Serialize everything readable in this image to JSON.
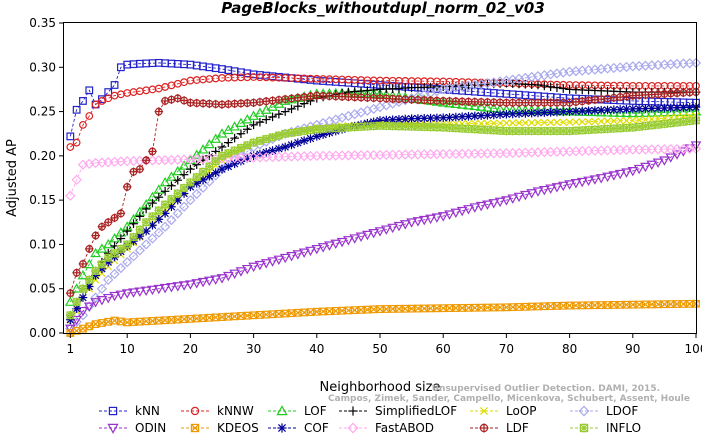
{
  "chart_data": {
    "type": "line",
    "title": "PageBlocks_withoutdupl_norm_02_v03",
    "xlabel": "Neighborhood size",
    "ylabel": "Adjusted AP",
    "xlim": [
      0,
      100
    ],
    "ylim": [
      0,
      0.35
    ],
    "xticks": [
      1,
      10,
      20,
      30,
      40,
      50,
      60,
      70,
      80,
      90,
      100
    ],
    "yticks": [
      0.0,
      0.05,
      0.1,
      0.15,
      0.2,
      0.25,
      0.3,
      0.35
    ],
    "ytick_labels": [
      "0.00",
      "0.05",
      "0.10",
      "0.15",
      "0.20",
      "0.25",
      "0.30",
      "0.35"
    ],
    "grid": false,
    "legend_position": "bottom",
    "watermark": [
      "Unsupervised Outlier Detection. DAMI, 2015.",
      "Campos, Zimek, Sander, Campello, Micenkova, Schubert, Assent, Houle"
    ],
    "series": [
      {
        "name": "kNN",
        "color": "#2222cc",
        "marker": "square",
        "points": [
          [
            1,
            0.222
          ],
          [
            2,
            0.252
          ],
          [
            3,
            0.262
          ],
          [
            4,
            0.274
          ],
          [
            5,
            0.258
          ],
          [
            6,
            0.264
          ],
          [
            7,
            0.272
          ],
          [
            8,
            0.28
          ],
          [
            9,
            0.3
          ],
          [
            10,
            0.303
          ],
          [
            12,
            0.304
          ],
          [
            15,
            0.305
          ],
          [
            20,
            0.303
          ],
          [
            25,
            0.298
          ],
          [
            30,
            0.292
          ],
          [
            40,
            0.285
          ],
          [
            50,
            0.28
          ],
          [
            60,
            0.275
          ],
          [
            70,
            0.27
          ],
          [
            80,
            0.265
          ],
          [
            90,
            0.262
          ],
          [
            100,
            0.26
          ]
        ]
      },
      {
        "name": "kNNW",
        "color": "#dd2222",
        "marker": "circle",
        "points": [
          [
            1,
            0.21
          ],
          [
            2,
            0.215
          ],
          [
            3,
            0.235
          ],
          [
            4,
            0.245
          ],
          [
            5,
            0.258
          ],
          [
            6,
            0.262
          ],
          [
            7,
            0.265
          ],
          [
            8,
            0.268
          ],
          [
            10,
            0.271
          ],
          [
            12,
            0.273
          ],
          [
            15,
            0.276
          ],
          [
            20,
            0.285
          ],
          [
            25,
            0.288
          ],
          [
            30,
            0.289
          ],
          [
            40,
            0.287
          ],
          [
            50,
            0.285
          ],
          [
            60,
            0.284
          ],
          [
            70,
            0.282
          ],
          [
            80,
            0.28
          ],
          [
            90,
            0.279
          ],
          [
            100,
            0.279
          ]
        ]
      },
      {
        "name": "LOF",
        "color": "#22cc22",
        "marker": "triangle-up",
        "points": [
          [
            1,
            0.035
          ],
          [
            3,
            0.065
          ],
          [
            5,
            0.09
          ],
          [
            7,
            0.1
          ],
          [
            10,
            0.12
          ],
          [
            13,
            0.145
          ],
          [
            16,
            0.17
          ],
          [
            20,
            0.195
          ],
          [
            25,
            0.225
          ],
          [
            30,
            0.245
          ],
          [
            35,
            0.262
          ],
          [
            40,
            0.27
          ],
          [
            45,
            0.271
          ],
          [
            50,
            0.27
          ],
          [
            55,
            0.265
          ],
          [
            60,
            0.26
          ],
          [
            70,
            0.252
          ],
          [
            80,
            0.25
          ],
          [
            90,
            0.248
          ],
          [
            100,
            0.25
          ]
        ]
      },
      {
        "name": "SimplifiedLOF",
        "color": "#000000",
        "marker": "plus",
        "points": [
          [
            1,
            0.02
          ],
          [
            3,
            0.05
          ],
          [
            5,
            0.07
          ],
          [
            7,
            0.09
          ],
          [
            10,
            0.115
          ],
          [
            13,
            0.14
          ],
          [
            16,
            0.16
          ],
          [
            20,
            0.185
          ],
          [
            25,
            0.21
          ],
          [
            30,
            0.235
          ],
          [
            35,
            0.25
          ],
          [
            40,
            0.265
          ],
          [
            45,
            0.272
          ],
          [
            50,
            0.275
          ],
          [
            55,
            0.277
          ],
          [
            60,
            0.278
          ],
          [
            65,
            0.28
          ],
          [
            70,
            0.282
          ],
          [
            75,
            0.28
          ],
          [
            80,
            0.275
          ],
          [
            90,
            0.272
          ],
          [
            100,
            0.272
          ]
        ]
      },
      {
        "name": "LoOP",
        "color": "#dddd00",
        "marker": "x",
        "points": [
          [
            1,
            0.01
          ],
          [
            3,
            0.04
          ],
          [
            5,
            0.06
          ],
          [
            7,
            0.075
          ],
          [
            10,
            0.095
          ],
          [
            13,
            0.115
          ],
          [
            16,
            0.14
          ],
          [
            20,
            0.165
          ],
          [
            25,
            0.195
          ],
          [
            30,
            0.215
          ],
          [
            35,
            0.225
          ],
          [
            40,
            0.232
          ],
          [
            45,
            0.234
          ],
          [
            50,
            0.236
          ],
          [
            55,
            0.236
          ],
          [
            60,
            0.236
          ],
          [
            70,
            0.237
          ],
          [
            80,
            0.238
          ],
          [
            90,
            0.24
          ],
          [
            100,
            0.245
          ]
        ]
      },
      {
        "name": "LDOF",
        "color": "#aaaaee",
        "marker": "diamond",
        "points": [
          [
            1,
            0.005
          ],
          [
            3,
            0.02
          ],
          [
            5,
            0.04
          ],
          [
            7,
            0.06
          ],
          [
            10,
            0.08
          ],
          [
            13,
            0.1
          ],
          [
            16,
            0.12
          ],
          [
            20,
            0.15
          ],
          [
            25,
            0.185
          ],
          [
            30,
            0.21
          ],
          [
            35,
            0.225
          ],
          [
            40,
            0.235
          ],
          [
            45,
            0.245
          ],
          [
            50,
            0.255
          ],
          [
            55,
            0.265
          ],
          [
            60,
            0.275
          ],
          [
            65,
            0.28
          ],
          [
            70,
            0.285
          ],
          [
            75,
            0.29
          ],
          [
            80,
            0.295
          ],
          [
            90,
            0.301
          ],
          [
            100,
            0.305
          ]
        ]
      },
      {
        "name": "ODIN",
        "color": "#9933cc",
        "marker": "triangle-down",
        "points": [
          [
            1,
            0.005
          ],
          [
            3,
            0.025
          ],
          [
            5,
            0.035
          ],
          [
            8,
            0.042
          ],
          [
            10,
            0.045
          ],
          [
            15,
            0.05
          ],
          [
            20,
            0.055
          ],
          [
            25,
            0.062
          ],
          [
            30,
            0.075
          ],
          [
            35,
            0.085
          ],
          [
            40,
            0.095
          ],
          [
            45,
            0.105
          ],
          [
            50,
            0.115
          ],
          [
            55,
            0.125
          ],
          [
            60,
            0.132
          ],
          [
            65,
            0.142
          ],
          [
            70,
            0.15
          ],
          [
            75,
            0.16
          ],
          [
            80,
            0.168
          ],
          [
            85,
            0.175
          ],
          [
            90,
            0.183
          ],
          [
            95,
            0.195
          ],
          [
            100,
            0.212
          ]
        ]
      },
      {
        "name": "KDEOS",
        "color": "#ee9900",
        "marker": "square-x",
        "points": [
          [
            1,
            0.0
          ],
          [
            3,
            0.005
          ],
          [
            5,
            0.01
          ],
          [
            8,
            0.014
          ],
          [
            10,
            0.012
          ],
          [
            15,
            0.014
          ],
          [
            20,
            0.016
          ],
          [
            30,
            0.02
          ],
          [
            40,
            0.024
          ],
          [
            50,
            0.027
          ],
          [
            60,
            0.028
          ],
          [
            70,
            0.029
          ],
          [
            80,
            0.031
          ],
          [
            90,
            0.032
          ],
          [
            100,
            0.033
          ]
        ]
      },
      {
        "name": "COF",
        "color": "#000099",
        "marker": "star",
        "points": [
          [
            1,
            0.015
          ],
          [
            3,
            0.04
          ],
          [
            5,
            0.065
          ],
          [
            7,
            0.08
          ],
          [
            10,
            0.098
          ],
          [
            13,
            0.115
          ],
          [
            16,
            0.135
          ],
          [
            20,
            0.165
          ],
          [
            25,
            0.185
          ],
          [
            30,
            0.2
          ],
          [
            35,
            0.21
          ],
          [
            40,
            0.222
          ],
          [
            45,
            0.232
          ],
          [
            50,
            0.24
          ],
          [
            55,
            0.242
          ],
          [
            60,
            0.243
          ],
          [
            70,
            0.247
          ],
          [
            80,
            0.25
          ],
          [
            90,
            0.253
          ],
          [
            100,
            0.255
          ]
        ]
      },
      {
        "name": "FastABOD",
        "color": "#ffaaee",
        "marker": "diamond",
        "points": [
          [
            1,
            0.155
          ],
          [
            2,
            0.173
          ],
          [
            3,
            0.19
          ],
          [
            5,
            0.192
          ],
          [
            10,
            0.194
          ],
          [
            20,
            0.196
          ],
          [
            30,
            0.198
          ],
          [
            40,
            0.2
          ],
          [
            50,
            0.201
          ],
          [
            60,
            0.202
          ],
          [
            70,
            0.203
          ],
          [
            80,
            0.205
          ],
          [
            90,
            0.207
          ],
          [
            100,
            0.208
          ]
        ]
      },
      {
        "name": "LDF",
        "color": "#aa2222",
        "marker": "circle-plus",
        "points": [
          [
            1,
            0.045
          ],
          [
            2,
            0.068
          ],
          [
            3,
            0.078
          ],
          [
            4,
            0.095
          ],
          [
            5,
            0.11
          ],
          [
            6,
            0.12
          ],
          [
            7,
            0.125
          ],
          [
            8,
            0.13
          ],
          [
            9,
            0.135
          ],
          [
            10,
            0.165
          ],
          [
            11,
            0.182
          ],
          [
            12,
            0.185
          ],
          [
            13,
            0.195
          ],
          [
            14,
            0.205
          ],
          [
            15,
            0.25
          ],
          [
            16,
            0.262
          ],
          [
            18,
            0.265
          ],
          [
            20,
            0.26
          ],
          [
            25,
            0.258
          ],
          [
            30,
            0.26
          ],
          [
            40,
            0.268
          ],
          [
            50,
            0.265
          ],
          [
            60,
            0.262
          ],
          [
            70,
            0.26
          ],
          [
            80,
            0.26
          ],
          [
            90,
            0.268
          ],
          [
            100,
            0.272
          ]
        ]
      },
      {
        "name": "INFLO",
        "color": "#99cc33",
        "marker": "square-star",
        "points": [
          [
            1,
            0.02
          ],
          [
            3,
            0.05
          ],
          [
            5,
            0.07
          ],
          [
            7,
            0.085
          ],
          [
            10,
            0.1
          ],
          [
            13,
            0.125
          ],
          [
            16,
            0.145
          ],
          [
            20,
            0.17
          ],
          [
            25,
            0.2
          ],
          [
            30,
            0.215
          ],
          [
            35,
            0.225
          ],
          [
            40,
            0.23
          ],
          [
            45,
            0.232
          ],
          [
            50,
            0.234
          ],
          [
            55,
            0.233
          ],
          [
            60,
            0.232
          ],
          [
            70,
            0.228
          ],
          [
            80,
            0.228
          ],
          [
            90,
            0.232
          ],
          [
            100,
            0.24
          ]
        ]
      }
    ]
  }
}
